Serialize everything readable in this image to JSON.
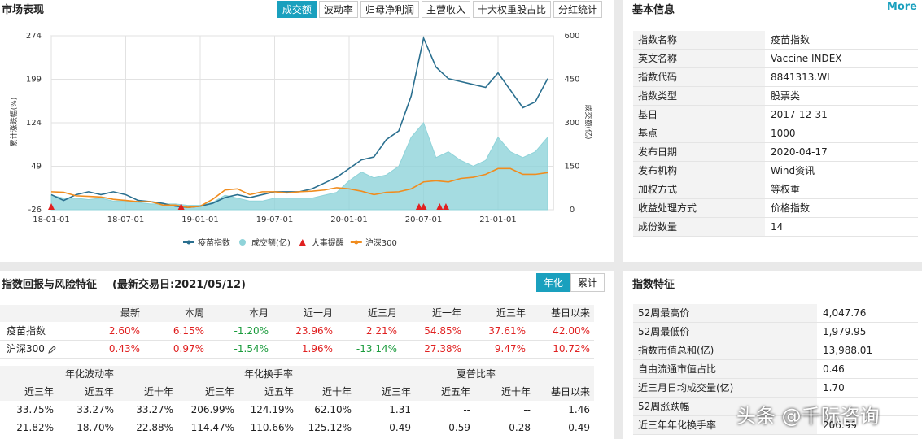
{
  "market": {
    "title": "市场表现",
    "tabs": [
      "成交额",
      "波动率",
      "归母净利润",
      "主营收入",
      "十大权重股占比",
      "分红统计"
    ],
    "chart": {
      "type": "line",
      "y_label": "累计涨跌幅(%)",
      "y2_label": "成交额(亿)",
      "x": [
        "18-01-01",
        "18-02-01",
        "18-03-01",
        "18-04-01",
        "18-05-01",
        "18-06-01",
        "18-07-01",
        "18-08-01",
        "18-09-01",
        "18-10-01",
        "18-11-01",
        "18-12-01",
        "19-01-01",
        "19-02-01",
        "19-03-01",
        "19-04-01",
        "19-05-01",
        "19-06-01",
        "19-07-01",
        "19-08-01",
        "19-09-01",
        "19-10-01",
        "19-11-01",
        "19-12-01",
        "20-01-01",
        "20-02-01",
        "20-03-01",
        "20-04-01",
        "20-05-01",
        "20-06-01",
        "20-07-01",
        "20-08-01",
        "20-09-01",
        "20-10-01",
        "20-11-01",
        "20-12-01",
        "21-01-01",
        "21-02-01",
        "21-03-01",
        "21-04-01",
        "21-05-01"
      ],
      "xticks": [
        "18-01-01",
        "18-07-01",
        "19-01-01",
        "19-07-01",
        "20-01-01",
        "20-07-01",
        "21-01-01"
      ],
      "ylim": [
        -26,
        274
      ],
      "yticks": [
        -26,
        49,
        124,
        199,
        274
      ],
      "y2lim": [
        0,
        600
      ],
      "y2ticks": [
        0,
        150,
        300,
        450,
        600
      ],
      "grid": true,
      "series": [
        {
          "name": "疫苗指数",
          "color": "#2a6f8f",
          "values": [
            0,
            -10,
            0,
            5,
            0,
            5,
            0,
            -10,
            -12,
            -15,
            -20,
            -22,
            -20,
            -15,
            -5,
            0,
            -5,
            0,
            5,
            5,
            5,
            10,
            20,
            30,
            45,
            60,
            65,
            95,
            110,
            170,
            270,
            220,
            200,
            195,
            190,
            185,
            210,
            180,
            150,
            160,
            200
          ]
        },
        {
          "name": "成交额(亿)",
          "color": "#8fd3d9",
          "type": "area",
          "axis": "y2",
          "values": [
            50,
            40,
            40,
            35,
            40,
            30,
            30,
            25,
            20,
            20,
            20,
            15,
            15,
            25,
            50,
            40,
            30,
            30,
            40,
            40,
            40,
            40,
            50,
            60,
            100,
            130,
            110,
            120,
            150,
            250,
            300,
            180,
            200,
            170,
            150,
            170,
            250,
            200,
            180,
            200,
            250
          ]
        },
        {
          "name": "沪深300",
          "color": "#f08c1e",
          "values": [
            5,
            4,
            -2,
            -3,
            -4,
            -8,
            -10,
            -12,
            -12,
            -18,
            -18,
            -22,
            -20,
            -8,
            8,
            10,
            0,
            5,
            5,
            3,
            5,
            6,
            8,
            12,
            10,
            6,
            0,
            4,
            5,
            10,
            22,
            24,
            22,
            28,
            30,
            35,
            45,
            45,
            35,
            35,
            38
          ]
        }
      ],
      "events": {
        "name": "大事提醒",
        "color": "#e02020",
        "x": [
          "18-01-01",
          "18-11-15",
          "20-06-20",
          "20-07-01",
          "20-08-10",
          "20-08-25"
        ]
      }
    }
  },
  "basic_info": {
    "title": "基本信息",
    "more": "More",
    "rows": [
      [
        "指数名称",
        "疫苗指数"
      ],
      [
        "英文名称",
        "Vaccine INDEX"
      ],
      [
        "指数代码",
        "8841313.WI"
      ],
      [
        "指数类型",
        "股票类"
      ],
      [
        "基日",
        "2017-12-31"
      ],
      [
        "基点",
        "1000"
      ],
      [
        "发布日期",
        "2020-04-17"
      ],
      [
        "发布机构",
        "Wind资讯"
      ],
      [
        "加权方式",
        "等权重"
      ],
      [
        "收益处理方式",
        "价格指数"
      ],
      [
        "成份数量",
        "14"
      ]
    ]
  },
  "returns": {
    "title": "指数回报与风险特征",
    "date": "(最新交易日:2021/05/12)",
    "toggles": [
      "年化",
      "累计"
    ],
    "table1": {
      "header": [
        "最新",
        "本周",
        "本月",
        "近一月",
        "近三月",
        "近一年",
        "近三年",
        "基日以来"
      ],
      "rows": [
        [
          "疫苗指数",
          "2.60%",
          "6.15%",
          "-1.20%",
          "23.96%",
          "2.21%",
          "54.85%",
          "37.61%",
          "42.00%"
        ],
        [
          "沪深300",
          "0.43%",
          "0.97%",
          "-1.54%",
          "1.96%",
          "-13.14%",
          "27.38%",
          "9.47%",
          "10.72%"
        ]
      ]
    },
    "table2": {
      "groups": [
        "年化波动率",
        "年化换手率",
        "夏普比率"
      ],
      "header": [
        "近三年",
        "近五年",
        "近十年",
        "近三年",
        "近五年",
        "近十年",
        "近三年",
        "近五年",
        "近十年",
        "基日以来"
      ],
      "rows": [
        [
          "33.75%",
          "33.27%",
          "33.27%",
          "206.99%",
          "124.19%",
          "62.10%",
          "1.31",
          "--",
          "--",
          "1.46"
        ],
        [
          "21.82%",
          "18.70%",
          "22.88%",
          "114.47%",
          "110.66%",
          "125.12%",
          "0.49",
          "0.59",
          "0.28",
          "0.49"
        ]
      ]
    }
  },
  "features": {
    "title": "指数特征",
    "rows": [
      [
        "52周最高价",
        "4,047.76"
      ],
      [
        "52周最低价",
        "1,979.95"
      ],
      [
        "指数市值总和(亿)",
        "13,988.01"
      ],
      [
        "自由流通市值占比",
        "0.46"
      ],
      [
        "近三月日均成交量(亿)",
        "1.70"
      ],
      [
        "52周涨跌幅"
      ],
      [
        "近三年年化换手率",
        "206.99"
      ]
    ]
  },
  "watermark": "头条 @千际咨询"
}
